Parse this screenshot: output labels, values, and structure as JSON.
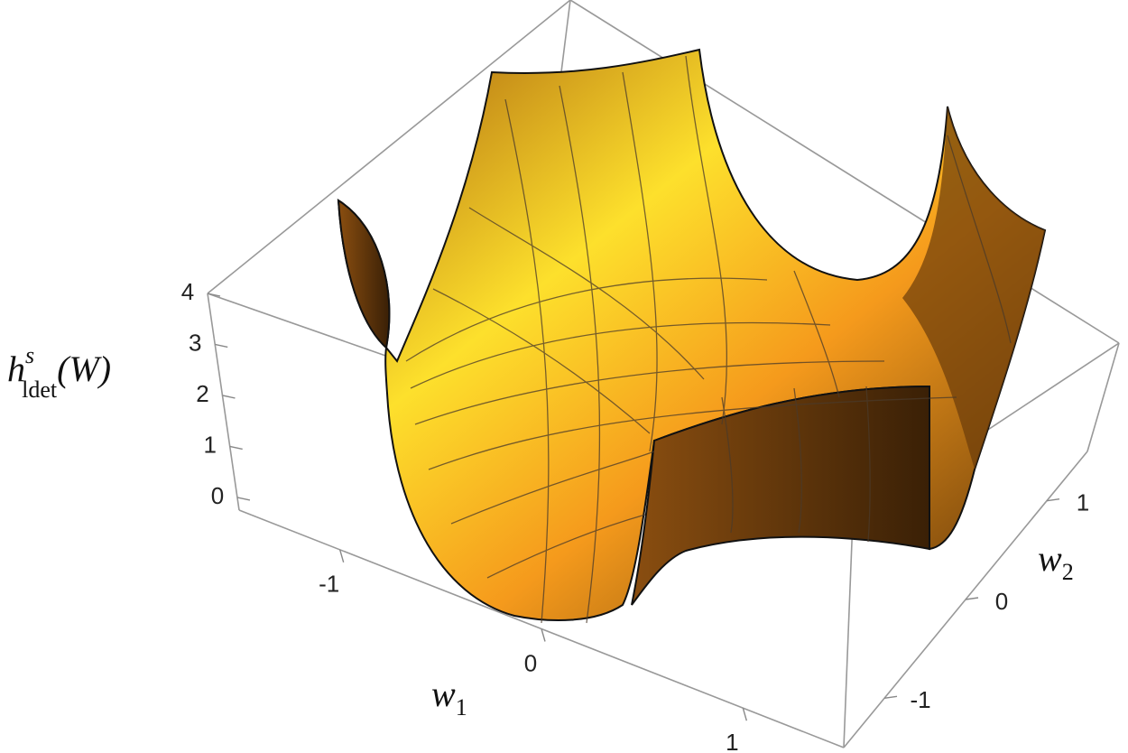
{
  "chart_data": {
    "type": "surface3d",
    "x_label": {
      "main": "w",
      "subscript": "1"
    },
    "y_label": {
      "main": "w",
      "subscript": "2"
    },
    "z_label": {
      "main": "h",
      "superscript": "s",
      "subscript": "ldet",
      "argument": "(W)"
    },
    "xlim": [
      -1.5,
      1.5
    ],
    "xticks": [
      -1,
      0,
      1
    ],
    "ylim": [
      -1.5,
      1.5
    ],
    "yticks": [
      -1,
      0,
      1
    ],
    "zlim": [
      -0.25,
      4
    ],
    "zticks": [
      0,
      1,
      2,
      3,
      4
    ],
    "color": "#f59a1c"
  }
}
